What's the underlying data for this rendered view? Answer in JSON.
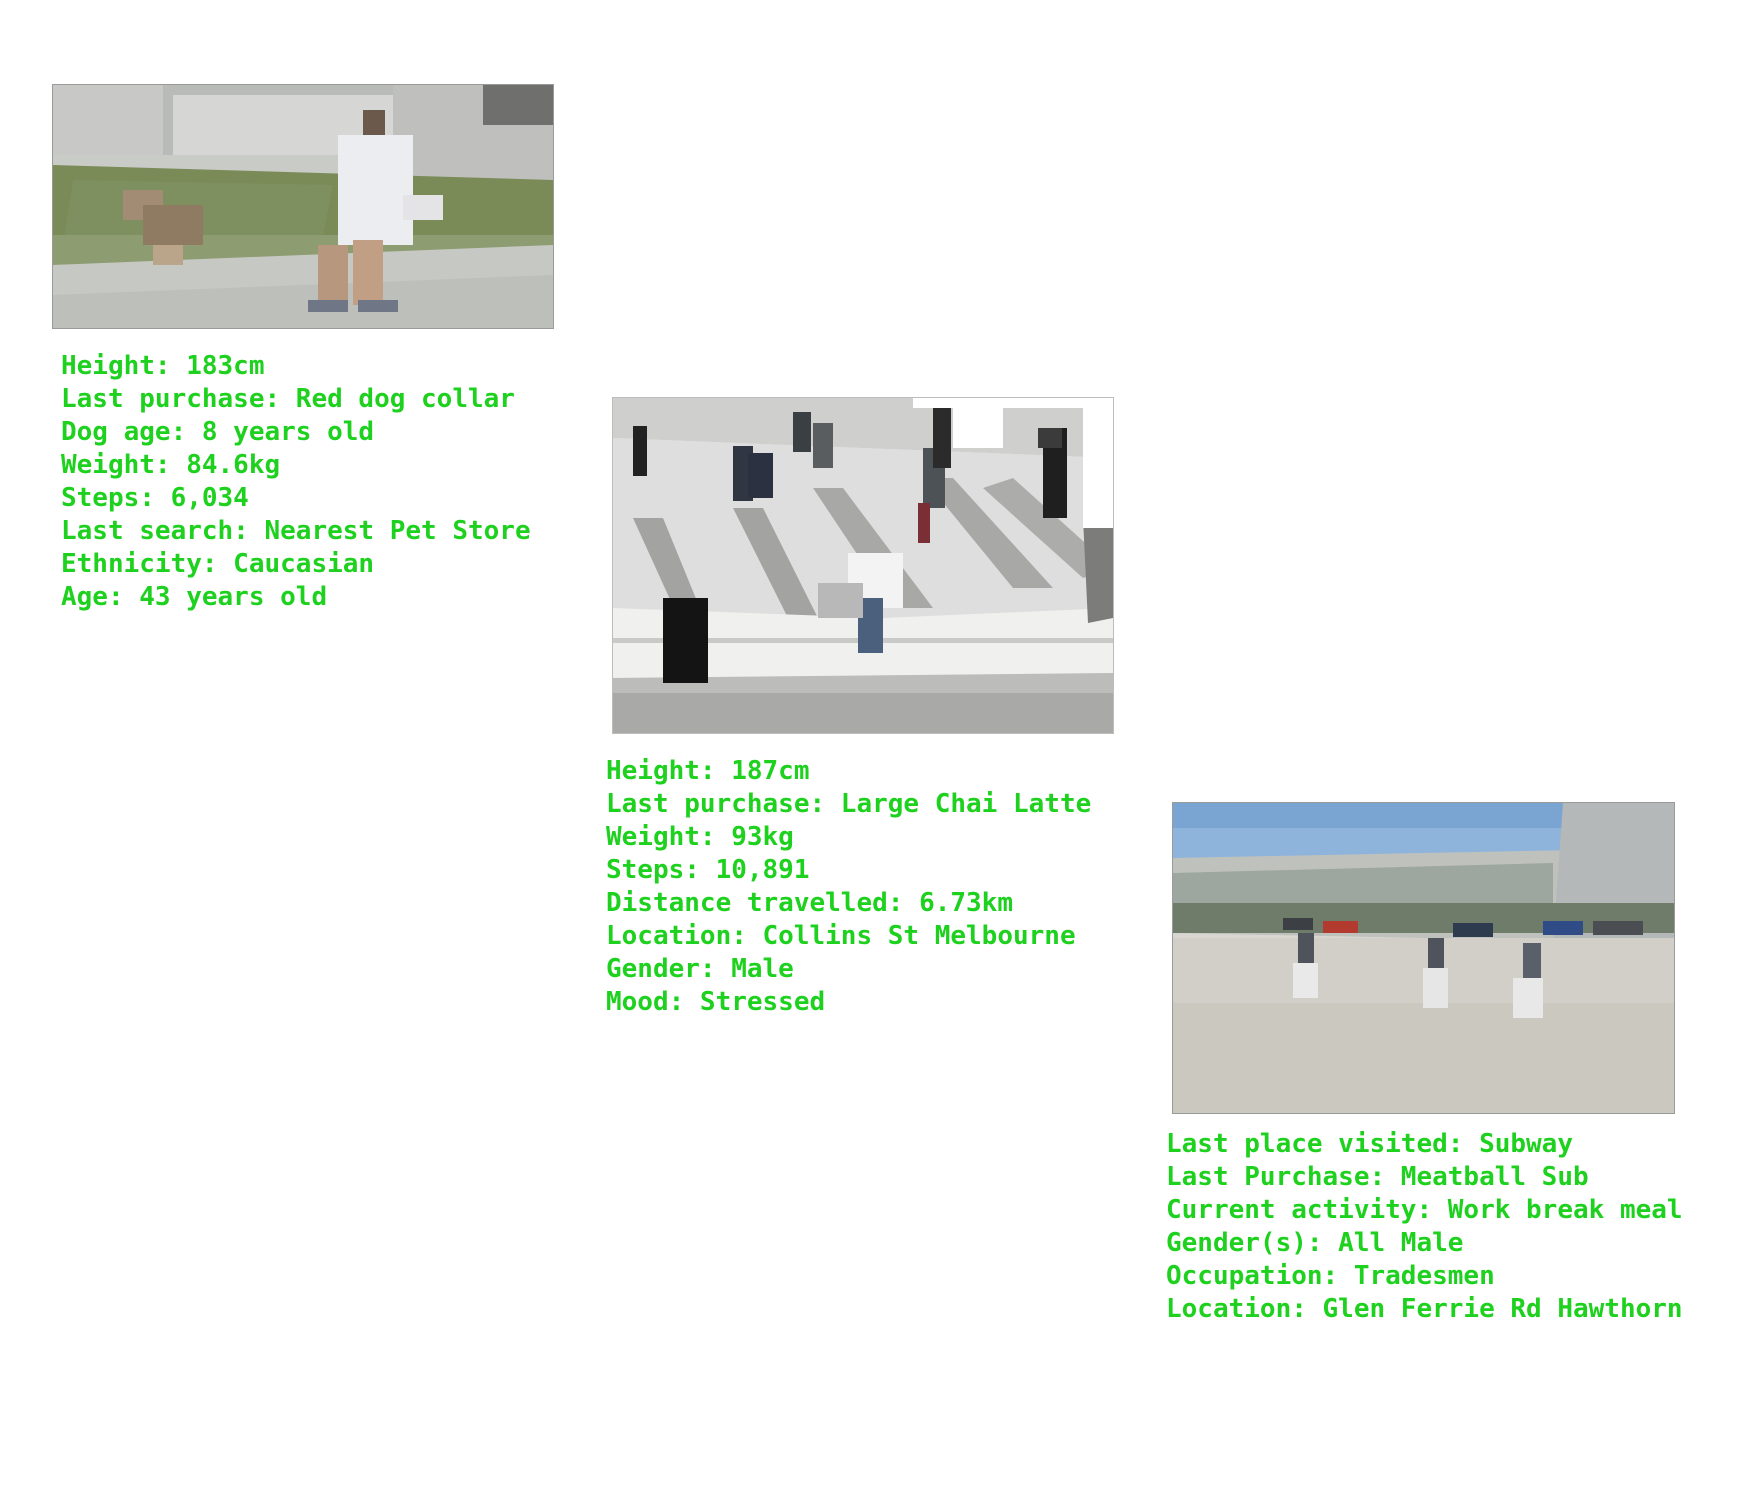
{
  "panels": [
    {
      "image_icon": "photo-man-walking-dog",
      "lines": [
        "Height: 183cm",
        "Last purchase: Red dog collar",
        "Dog age: 8 years old",
        "Weight: 84.6kg",
        "Steps: 6,034",
        "Last search: Nearest Pet Store",
        "Ethnicity: Caucasian",
        "Age: 43 years old"
      ]
    },
    {
      "image_icon": "photo-pedestrians-street",
      "lines": [
        "Height: 187cm",
        "Last purchase: Large Chai Latte",
        "Weight: 93kg",
        "Steps: 10,891",
        "Distance travelled: 6.73km",
        "Location: Collins St Melbourne",
        "Gender: Male",
        "Mood: Stressed"
      ]
    },
    {
      "image_icon": "photo-three-workers-plaza",
      "lines": [
        "Last place visited: Subway",
        "Last Purchase: Meatball Sub",
        "Current activity: Work break meal",
        "Gender(s): All Male",
        "Occupation: Tradesmen",
        "Location: Glen Ferrie Rd Hawthorn"
      ]
    }
  ],
  "colors": {
    "text": "#1ed11e",
    "background": "#ffffff"
  }
}
